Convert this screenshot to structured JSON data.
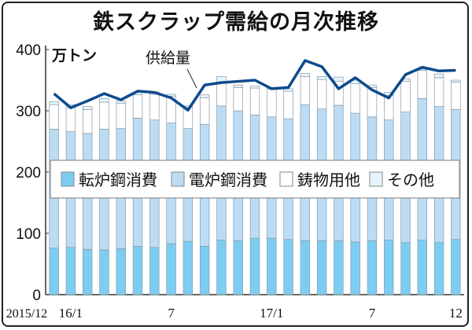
{
  "chart_data": {
    "type": "bar",
    "stacked": true,
    "title": "鉄スクラップ需給の月次推移",
    "ylabel": "万トン",
    "ylim": [
      0,
      400
    ],
    "yticks": [
      0,
      100,
      200,
      300,
      400
    ],
    "x_tick_labels": [
      {
        "index": 0,
        "label": "2015/12"
      },
      {
        "index": 1,
        "label": "16/1"
      },
      {
        "index": 7,
        "label": "7"
      },
      {
        "index": 13,
        "label": "17/1"
      },
      {
        "index": 19,
        "label": "7"
      },
      {
        "index": 24,
        "label": "12"
      }
    ],
    "categories": [
      "2015/12",
      "2016/1",
      "2016/2",
      "2016/3",
      "2016/4",
      "2016/5",
      "2016/6",
      "2016/7",
      "2016/8",
      "2016/9",
      "2016/10",
      "2016/11",
      "2016/12",
      "2017/1",
      "2017/2",
      "2017/3",
      "2017/4",
      "2017/5",
      "2017/6",
      "2017/7",
      "2017/8",
      "2017/9",
      "2017/10",
      "2017/11",
      "2017/12"
    ],
    "series": [
      {
        "name": "転炉鋼消費",
        "color": "#7dcdf2",
        "values": [
          76,
          77,
          74,
          73,
          75,
          79,
          77,
          83,
          87,
          79,
          89,
          88,
          92,
          92,
          90,
          88,
          88,
          88,
          86,
          88,
          89,
          85,
          89,
          85,
          90
        ]
      },
      {
        "name": "電炉鋼消費",
        "color": "#bcdcf3",
        "values": [
          194,
          189,
          189,
          197,
          196,
          209,
          208,
          197,
          184,
          199,
          219,
          212,
          201,
          198,
          197,
          222,
          215,
          221,
          210,
          202,
          196,
          213,
          231,
          222,
          212
        ]
      },
      {
        "name": "鋳物用他",
        "color": "#ffffff",
        "values": [
          40,
          39,
          39,
          44,
          41,
          38,
          42,
          44,
          35,
          43,
          37,
          38,
          44,
          45,
          45,
          46,
          48,
          39,
          48,
          48,
          40,
          50,
          46,
          47,
          45
        ]
      },
      {
        "name": "その他",
        "color": "#e6f4fc",
        "values": [
          5,
          5,
          5,
          6,
          4,
          4,
          4,
          3,
          2,
          5,
          11,
          4,
          3,
          3,
          4,
          5,
          5,
          7,
          6,
          4,
          5,
          4,
          2,
          6,
          3
        ]
      }
    ],
    "line": {
      "name": "供給量",
      "color": "#0d4a8c",
      "values": [
        328,
        305,
        316,
        328,
        318,
        332,
        330,
        321,
        301,
        342,
        346,
        348,
        350,
        336,
        338,
        382,
        372,
        336,
        354,
        334,
        321,
        359,
        371,
        365,
        366
      ]
    },
    "legend_position": "center"
  }
}
